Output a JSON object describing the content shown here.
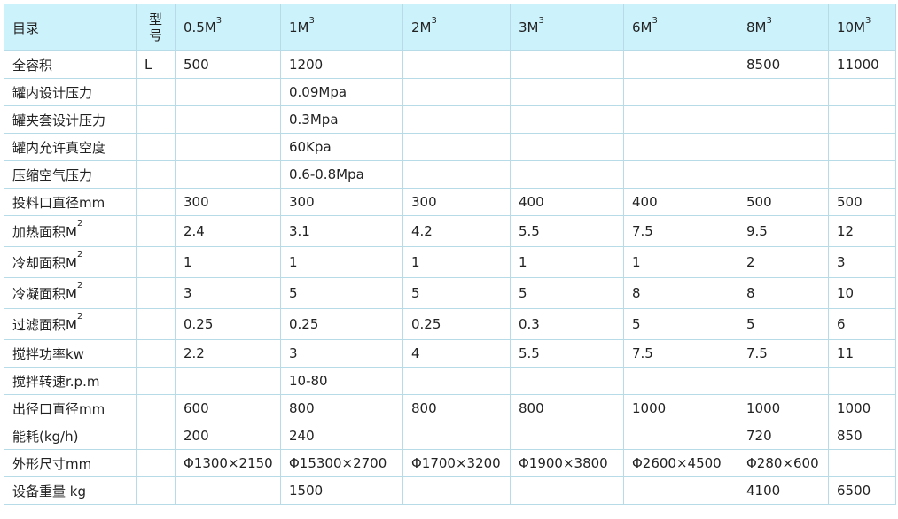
{
  "header": {
    "catalog": "目录",
    "model_top": "型",
    "model_bottom": "号",
    "columns": [
      {
        "base": "0.5M",
        "exp": "3"
      },
      {
        "base": "1M",
        "exp": "3"
      },
      {
        "base": "2M",
        "exp": "3"
      },
      {
        "base": "3M",
        "exp": "3"
      },
      {
        "base": "6M",
        "exp": "3"
      },
      {
        "base": "8M",
        "exp": "3"
      },
      {
        "base": "10M",
        "exp": "3"
      }
    ]
  },
  "rows": [
    {
      "label": "全容积",
      "unit": "L",
      "cells": [
        "500",
        "1200",
        "",
        "",
        "",
        "8500",
        "11000"
      ]
    },
    {
      "label": "罐内设计压力",
      "unit": "",
      "cells": [
        "",
        "0.09Mpa",
        "",
        "",
        "",
        "",
        ""
      ]
    },
    {
      "label": "罐夹套设计压力",
      "unit": "",
      "cells": [
        "",
        "0.3Mpa",
        "",
        "",
        "",
        "",
        ""
      ]
    },
    {
      "label": "罐内允许真空度",
      "unit": "",
      "cells": [
        "",
        "60Kpa",
        "",
        "",
        "",
        "",
        ""
      ]
    },
    {
      "label": "压缩空气压力",
      "unit": "",
      "cells": [
        "",
        "0.6-0.8Mpa",
        "",
        "",
        "",
        "",
        ""
      ]
    },
    {
      "label": "投料口直径mm",
      "unit": "",
      "cells": [
        "300",
        "300",
        "300",
        "400",
        "400",
        "500",
        "500"
      ]
    },
    {
      "label": "加热面积M",
      "label_sup": "2",
      "unit": "",
      "cells": [
        "2.4",
        "3.1",
        "4.2",
        "5.5",
        "7.5",
        "9.5",
        "12"
      ]
    },
    {
      "label": "冷却面积M",
      "label_sup": "2",
      "unit": "",
      "cells": [
        "1",
        "1",
        "1",
        "1",
        "1",
        "2",
        "3"
      ]
    },
    {
      "label": "冷凝面积M",
      "label_sup": "2",
      "unit": "",
      "cells": [
        "3",
        "5",
        "5",
        "5",
        "8",
        "8",
        "10"
      ]
    },
    {
      "label": "过滤面积M",
      "label_sup": "2",
      "unit": "",
      "cells": [
        "0.25",
        "0.25",
        "0.25",
        "0.3",
        "5",
        "5",
        "6"
      ]
    },
    {
      "label": "搅拌功率kw",
      "unit": "",
      "cells": [
        "2.2",
        "3",
        "4",
        "5.5",
        "7.5",
        "7.5",
        "11"
      ]
    },
    {
      "label": "搅拌转速r.p.m",
      "unit": "",
      "cells": [
        "",
        "10-80",
        "",
        "",
        "",
        "",
        ""
      ]
    },
    {
      "label": "出径口直径mm",
      "unit": "",
      "cells": [
        "600",
        "800",
        "800",
        "800",
        "1000",
        "1000",
        "1000"
      ]
    },
    {
      "label": "能耗(kg/h)",
      "unit": "",
      "cells": [
        "200",
        "240",
        "",
        "",
        "",
        "720",
        "850"
      ]
    },
    {
      "label": "外形尺寸mm",
      "unit": "",
      "cells": [
        "Φ1300×2150",
        "Φ15300×2700",
        "Φ1700×3200",
        "Φ1900×3800",
        "Φ2600×4500",
        "Φ280×600",
        ""
      ]
    },
    {
      "label": "设备重量 kg",
      "unit": "",
      "cells": [
        "",
        "1500",
        "",
        "",
        "",
        "4100",
        "6500"
      ]
    }
  ]
}
